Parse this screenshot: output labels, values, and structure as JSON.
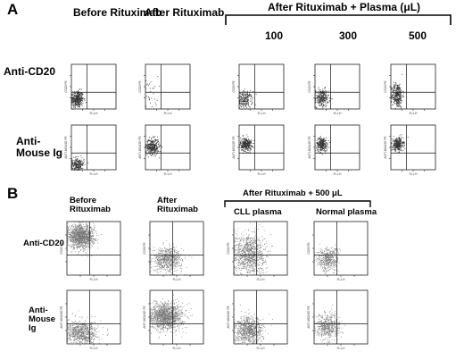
{
  "figure": {
    "panel_a": {
      "letter": "A",
      "column_headers": [
        "Before Rituximab",
        "After Rituximab"
      ],
      "bracket_header": "After Rituximab + Plasma (μL)",
      "concentrations": [
        "100",
        "300",
        "500"
      ],
      "row_labels": [
        "Anti-CD20",
        "Anti-Mouse Ig"
      ]
    },
    "panel_b": {
      "letter": "B",
      "column_headers": [
        "Before Rituximab",
        "After Rituximab"
      ],
      "bracket_header": "After Rituximab + 500 μL",
      "sub_headers": [
        "CLL plasma",
        "Normal plasma"
      ],
      "row_labels": [
        "Anti-CD20",
        "Anti-Mouse Ig"
      ]
    }
  },
  "chart_data": [
    {
      "panel": "A",
      "type": "scatter",
      "xlabel": "FL1-H",
      "ylabel_by_row": [
        "CD20 PE",
        "ANTI-MOUSE PE"
      ],
      "grid_cols": [
        "Before Rituximab",
        "After Rituximab",
        "100",
        "300",
        "500"
      ],
      "grid_rows": [
        "Anti-CD20",
        "Anti-Mouse Ig"
      ],
      "xlim": [
        0,
        4
      ],
      "ylim": [
        0,
        4
      ],
      "x_scale": "log",
      "y_scale": "log",
      "quadrant_gates": {
        "x": 1.4,
        "y": 1.5
      },
      "populations": [
        [
          {
            "cx": 0.5,
            "cy": 0.9,
            "sx": 0.28,
            "sy": 0.38,
            "n": 340,
            "color": "#333333"
          },
          {
            "cx": 0.4,
            "cy": 1.4,
            "sx": 0.35,
            "sy": 0.8,
            "n": 30,
            "color": "#333333"
          },
          {
            "cx": 0.5,
            "cy": 0.85,
            "sx": 0.33,
            "sy": 0.38,
            "n": 200,
            "color": "#333333"
          },
          {
            "cx": 0.6,
            "cy": 1.0,
            "sx": 0.3,
            "sy": 0.4,
            "n": 240,
            "color": "#333333"
          },
          {
            "cx": 0.55,
            "cy": 1.25,
            "sx": 0.25,
            "sy": 0.55,
            "n": 310,
            "color": "#333333"
          }
        ],
        [
          {
            "cx": 0.5,
            "cy": 0.5,
            "sx": 0.3,
            "sy": 0.3,
            "n": 230,
            "color": "#333333"
          },
          {
            "cx": 0.6,
            "cy": 2.1,
            "sx": 0.3,
            "sy": 0.35,
            "n": 330,
            "color": "#333333"
          },
          {
            "cx": 0.6,
            "cy": 2.3,
            "sx": 0.25,
            "sy": 0.3,
            "n": 300,
            "color": "#333333"
          },
          {
            "cx": 0.6,
            "cy": 2.3,
            "sx": 0.25,
            "sy": 0.3,
            "n": 270,
            "color": "#333333"
          },
          {
            "cx": 0.6,
            "cy": 2.3,
            "sx": 0.25,
            "sy": 0.3,
            "n": 300,
            "color": "#333333"
          }
        ]
      ]
    },
    {
      "panel": "B",
      "type": "scatter",
      "xlabel": "FL1-H",
      "ylabel_by_row": [
        "CD20 PE",
        "ANTI-MOUSE PE"
      ],
      "grid_cols": [
        "Before Rituximab",
        "After Rituximab",
        "CLL plasma",
        "Normal plasma"
      ],
      "grid_rows": [
        "Anti-CD20",
        "Anti-Mouse Ig"
      ],
      "xlim": [
        0,
        4
      ],
      "ylim": [
        0,
        4
      ],
      "x_scale": "log",
      "y_scale": "log",
      "quadrant_gates": {
        "x": 1.7,
        "y": 1.5
      },
      "populations": [
        [
          {
            "cx": 1.0,
            "cy": 2.9,
            "sx": 0.5,
            "sy": 0.42,
            "n": 1300,
            "color": "#777777"
          },
          {
            "cx": 1.3,
            "cy": 1.2,
            "sx": 0.55,
            "sy": 0.45,
            "n": 650,
            "color": "#777777"
          },
          {
            "cx": 1.1,
            "cy": 1.6,
            "sx": 0.6,
            "sy": 0.8,
            "n": 1000,
            "color": "#777777"
          },
          {
            "cx": 1.0,
            "cy": 1.2,
            "sx": 0.4,
            "sy": 0.45,
            "n": 420,
            "color": "#777777"
          }
        ],
        [
          {
            "cx": 1.1,
            "cy": 0.8,
            "sx": 0.6,
            "sy": 0.45,
            "n": 750,
            "color": "#777777"
          },
          {
            "cx": 1.2,
            "cy": 2.1,
            "sx": 0.6,
            "sy": 0.5,
            "n": 1300,
            "color": "#777777"
          },
          {
            "cx": 1.1,
            "cy": 1.0,
            "sx": 0.55,
            "sy": 0.5,
            "n": 800,
            "color": "#777777"
          },
          {
            "cx": 1.0,
            "cy": 1.3,
            "sx": 0.45,
            "sy": 0.5,
            "n": 500,
            "color": "#777777"
          }
        ]
      ]
    }
  ]
}
